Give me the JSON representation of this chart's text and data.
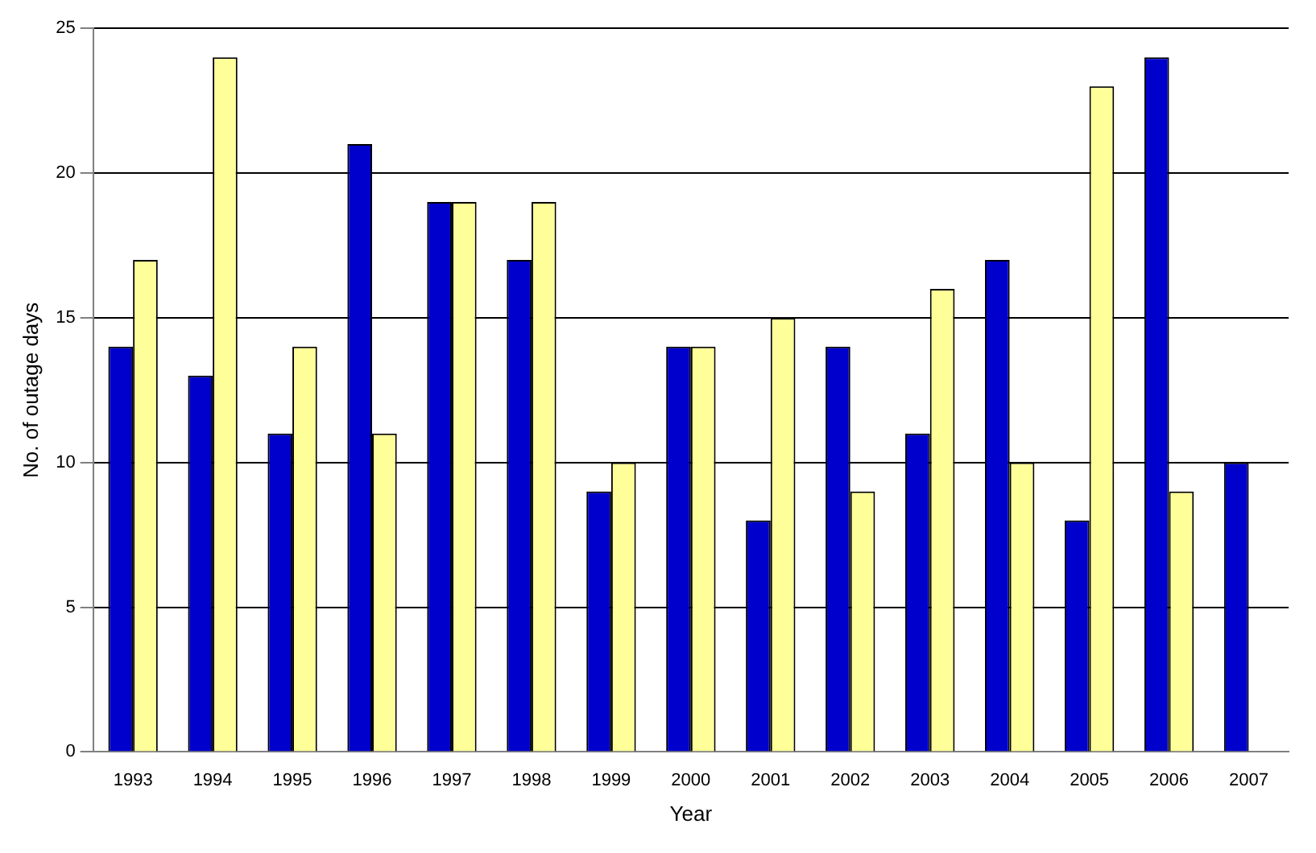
{
  "chart_data": {
    "type": "bar",
    "xlabel": "Year",
    "ylabel": "No. of outage days",
    "categories": [
      "1993",
      "1994",
      "1995",
      "1996",
      "1997",
      "1998",
      "1999",
      "2000",
      "2001",
      "2002",
      "2003",
      "2004",
      "2005",
      "2006",
      "2007"
    ],
    "series": [
      {
        "color": "#0000cc",
        "values": [
          14,
          13,
          11,
          21,
          19,
          17,
          9,
          14,
          8,
          14,
          11,
          17,
          8,
          24,
          10
        ]
      },
      {
        "color": "#ffff99",
        "values": [
          17,
          24,
          14,
          11,
          19,
          19,
          10,
          14,
          15,
          9,
          16,
          10,
          23,
          9,
          null
        ]
      }
    ],
    "ylim": [
      0,
      25
    ],
    "yticks": [
      0,
      5,
      10,
      15,
      20,
      25
    ],
    "grid": "y"
  }
}
